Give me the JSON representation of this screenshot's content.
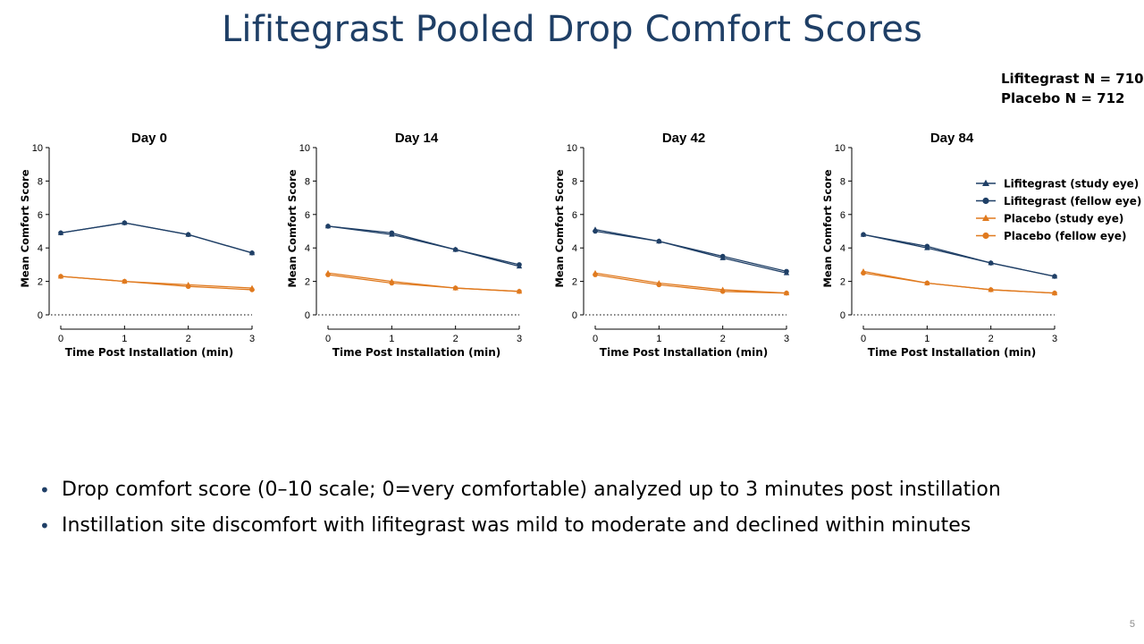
{
  "title": "Lifitegrast Pooled Drop Comfort Scores",
  "n_counts": [
    "Lifitegrast N = 710",
    "Placebo N = 712"
  ],
  "colors": {
    "lifitegrast": "#1f3f66",
    "placebo": "#e07a1f",
    "title": "#1f3f66"
  },
  "chart_data": [
    {
      "type": "line",
      "title": "Day 0",
      "xlabel": "Time Post Installation (min)",
      "ylabel": "Mean Comfort Score",
      "x": [
        0,
        1,
        2,
        3
      ],
      "xlim": [
        0,
        3
      ],
      "ylim": [
        0,
        10
      ],
      "xticks": [
        "0",
        "1",
        "2",
        "3"
      ],
      "yticks": [
        "0",
        "2",
        "4",
        "6",
        "8",
        "10"
      ],
      "series": [
        {
          "name": "Lifitegrast (study eye)",
          "marker": "triangle",
          "color": "#1f3f66",
          "values": [
            4.9,
            5.5,
            4.8,
            3.7
          ]
        },
        {
          "name": "Lifitegrast (fellow eye)",
          "marker": "circle",
          "color": "#1f3f66",
          "values": [
            4.9,
            5.5,
            4.8,
            3.7
          ]
        },
        {
          "name": "Placebo (study eye)",
          "marker": "triangle",
          "color": "#e07a1f",
          "values": [
            2.3,
            2.0,
            1.8,
            1.6
          ]
        },
        {
          "name": "Placebo (fellow eye)",
          "marker": "circle",
          "color": "#e07a1f",
          "values": [
            2.3,
            2.0,
            1.7,
            1.5
          ]
        }
      ]
    },
    {
      "type": "line",
      "title": "Day 14",
      "xlabel": "Time Post Installation (min)",
      "ylabel": "Mean Comfort Score",
      "x": [
        0,
        1,
        2,
        3
      ],
      "xlim": [
        0,
        3
      ],
      "ylim": [
        0,
        10
      ],
      "xticks": [
        "0",
        "1",
        "2",
        "3"
      ],
      "yticks": [
        "0",
        "2",
        "4",
        "6",
        "8",
        "10"
      ],
      "series": [
        {
          "name": "Lifitegrast (study eye)",
          "marker": "triangle",
          "color": "#1f3f66",
          "values": [
            5.3,
            4.8,
            3.9,
            2.9
          ]
        },
        {
          "name": "Lifitegrast (fellow eye)",
          "marker": "circle",
          "color": "#1f3f66",
          "values": [
            5.3,
            4.9,
            3.9,
            3.0
          ]
        },
        {
          "name": "Placebo (study eye)",
          "marker": "triangle",
          "color": "#e07a1f",
          "values": [
            2.5,
            2.0,
            1.6,
            1.4
          ]
        },
        {
          "name": "Placebo (fellow eye)",
          "marker": "circle",
          "color": "#e07a1f",
          "values": [
            2.4,
            1.9,
            1.6,
            1.4
          ]
        }
      ]
    },
    {
      "type": "line",
      "title": "Day 42",
      "xlabel": "Time Post Installation (min)",
      "ylabel": "Mean Comfort Score",
      "x": [
        0,
        1,
        2,
        3
      ],
      "xlim": [
        0,
        3
      ],
      "ylim": [
        0,
        10
      ],
      "xticks": [
        "0",
        "1",
        "2",
        "3"
      ],
      "yticks": [
        "0",
        "2",
        "4",
        "6",
        "8",
        "10"
      ],
      "series": [
        {
          "name": "Lifitegrast (study eye)",
          "marker": "triangle",
          "color": "#1f3f66",
          "values": [
            5.1,
            4.4,
            3.4,
            2.5
          ]
        },
        {
          "name": "Lifitegrast (fellow eye)",
          "marker": "circle",
          "color": "#1f3f66",
          "values": [
            5.0,
            4.4,
            3.5,
            2.6
          ]
        },
        {
          "name": "Placebo (study eye)",
          "marker": "triangle",
          "color": "#e07a1f",
          "values": [
            2.5,
            1.9,
            1.5,
            1.3
          ]
        },
        {
          "name": "Placebo (fellow eye)",
          "marker": "circle",
          "color": "#e07a1f",
          "values": [
            2.4,
            1.8,
            1.4,
            1.3
          ]
        }
      ]
    },
    {
      "type": "line",
      "title": "Day 84",
      "xlabel": "Time Post Installation (min)",
      "ylabel": "Mean Comfort Score",
      "x": [
        0,
        1,
        2,
        3
      ],
      "xlim": [
        0,
        3
      ],
      "ylim": [
        0,
        10
      ],
      "xticks": [
        "0",
        "1",
        "2",
        "3"
      ],
      "yticks": [
        "0",
        "2",
        "4",
        "6",
        "8",
        "10"
      ],
      "legend": "right",
      "series": [
        {
          "name": "Lifitegrast (study eye)",
          "marker": "triangle",
          "color": "#1f3f66",
          "values": [
            4.8,
            4.0,
            3.1,
            2.3
          ]
        },
        {
          "name": "Lifitegrast (fellow eye)",
          "marker": "circle",
          "color": "#1f3f66",
          "values": [
            4.8,
            4.1,
            3.1,
            2.3
          ]
        },
        {
          "name": "Placebo (study eye)",
          "marker": "triangle",
          "color": "#e07a1f",
          "values": [
            2.6,
            1.9,
            1.5,
            1.3
          ]
        },
        {
          "name": "Placebo (fellow eye)",
          "marker": "circle",
          "color": "#e07a1f",
          "values": [
            2.5,
            1.9,
            1.5,
            1.3
          ]
        }
      ]
    }
  ],
  "bullets": [
    "Drop comfort score (0–10 scale; 0=very comfortable) analyzed up to 3 minutes post instillation",
    "Instillation site discomfort with lifitegrast was mild to moderate and declined within minutes"
  ],
  "page_number": "5"
}
